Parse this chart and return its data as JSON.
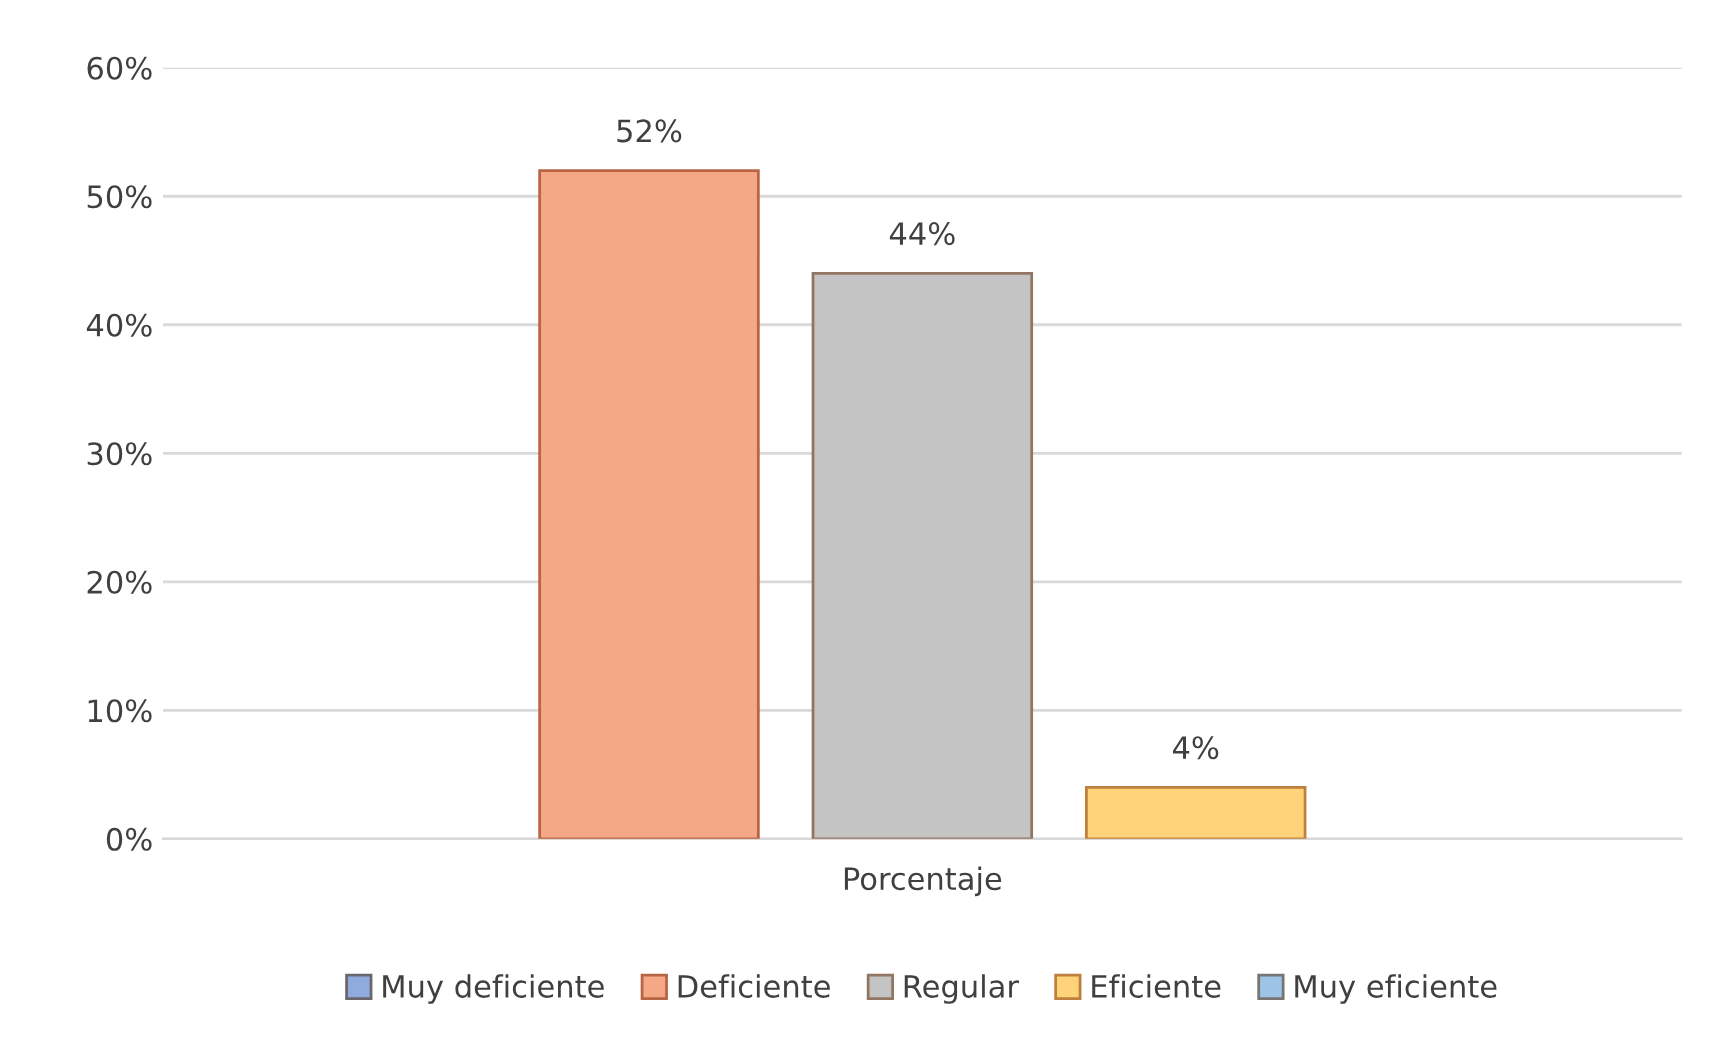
{
  "chart_data": {
    "type": "bar",
    "categories": [
      "Porcentaje"
    ],
    "series": [
      {
        "name": "Muy deficiente",
        "color": "#8faadc",
        "values": [
          0
        ],
        "value_labels": [
          null
        ]
      },
      {
        "name": "Deficiente",
        "color": "#f5a886",
        "values": [
          52
        ],
        "value_labels": [
          "52%"
        ]
      },
      {
        "name": "Regular",
        "color": "#c4c4c4",
        "values": [
          44
        ],
        "value_labels": [
          "44%"
        ]
      },
      {
        "name": "Eficiente",
        "color": "#ffd37a",
        "values": [
          4
        ],
        "value_labels": [
          "4%"
        ]
      },
      {
        "name": "Muy eficiente",
        "color": "#9dc3e6",
        "values": [
          0
        ],
        "value_labels": [
          null
        ]
      }
    ],
    "ylim": [
      0,
      60
    ],
    "yticks": [
      {
        "value": 0,
        "label": "0%"
      },
      {
        "value": 10,
        "label": "10%"
      },
      {
        "value": 20,
        "label": "20%"
      },
      {
        "value": 30,
        "label": "30%"
      },
      {
        "value": 40,
        "label": "40%"
      },
      {
        "value": 50,
        "label": "50%"
      },
      {
        "value": 60,
        "label": "60%"
      }
    ],
    "grid": "y",
    "legend": "bottom"
  }
}
